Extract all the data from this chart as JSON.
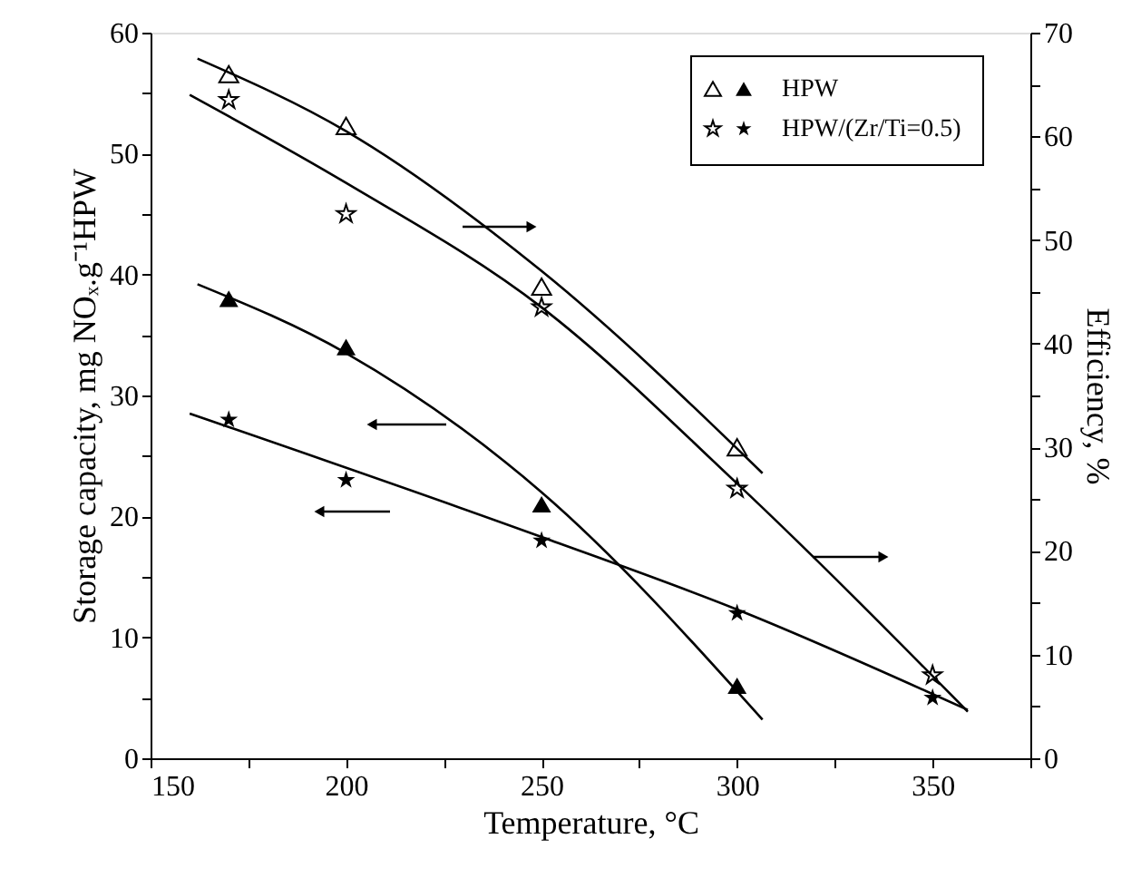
{
  "chart_data": {
    "type": "scatter",
    "xlabel": "Temperature, °C",
    "ylabel": "Storage capacity, mg NOₓ.g⁻¹HPW",
    "y2label": "Efficiency, %",
    "xlim": [
      150,
      375
    ],
    "ylim": [
      0,
      60
    ],
    "y2lim": [
      0,
      70
    ],
    "xticks": [
      150,
      {
        "value": 175,
        "label": null
      },
      200,
      {
        "value": 225,
        "label": null
      },
      250,
      {
        "value": 275,
        "label": null
      },
      300,
      {
        "value": 325,
        "label": null
      },
      350,
      {
        "value": 375,
        "label": null
      }
    ],
    "yticks": [
      0,
      {
        "value": 5,
        "label": null
      },
      10,
      {
        "value": 15,
        "label": null
      },
      20,
      {
        "value": 25,
        "label": null
      },
      30,
      {
        "value": 35,
        "label": null
      },
      40,
      {
        "value": 45,
        "label": null
      },
      50,
      {
        "value": 55,
        "label": null
      },
      60
    ],
    "y2ticks": [
      0,
      {
        "value": 5,
        "label": null
      },
      10,
      {
        "value": 15,
        "label": null
      },
      20,
      {
        "value": 25,
        "label": null
      },
      30,
      {
        "value": 35,
        "label": null
      },
      40,
      {
        "value": 45,
        "label": null
      },
      50,
      {
        "value": 55,
        "label": null
      },
      60,
      {
        "value": 65,
        "label": null
      },
      70
    ],
    "grid": false,
    "legend": "top right",
    "series": [
      {
        "name": "HPW",
        "marker": "triangle",
        "color": "#000000",
        "x": [
          170,
          200,
          250,
          300
        ],
        "values": [
          38,
          34,
          21,
          6
        ]
      },
      {
        "name": "HPW/(Zr/Ti=0.5)",
        "marker": "star",
        "color": "#000000",
        "x": [
          170,
          200,
          250,
          300,
          350
        ],
        "values": [
          28,
          23,
          18,
          12,
          5
        ]
      },
      {
        "marker": "triangle",
        "color": "#000000",
        "axis": "y2",
        "x": [
          170,
          200,
          250,
          300
        ],
        "values": [
          66,
          61,
          45.5,
          30
        ]
      },
      {
        "marker": "star",
        "color": "#000000",
        "axis": "y2",
        "x": [
          170,
          200,
          250,
          300,
          350
        ],
        "values": [
          63.5,
          52.5,
          43.5,
          26,
          8
        ]
      },
      {
        "type": "line",
        "marker": "none",
        "color": "#000000",
        "x": [
          162,
          200,
          250,
          306.5
        ],
        "values": [
          39.2,
          33.5,
          22,
          3.2
        ]
      },
      {
        "type": "line",
        "marker": "none",
        "color": "#000000",
        "x": [
          160,
          250,
          300,
          359
        ],
        "values": [
          28.5,
          18.3,
          12.3,
          4
        ]
      },
      {
        "type": "line",
        "marker": "none",
        "color": "#000000",
        "axis": "y2",
        "x": [
          162,
          200,
          250,
          306.5
        ],
        "values": [
          67.5,
          60.5,
          47,
          27.5
        ]
      },
      {
        "type": "line",
        "marker": "none",
        "color": "#000000",
        "axis": "y2",
        "x": [
          160,
          200,
          250,
          300,
          359
        ],
        "values": [
          64,
          55.5,
          43.5,
          26.5,
          4.5
        ]
      }
    ]
  }
}
